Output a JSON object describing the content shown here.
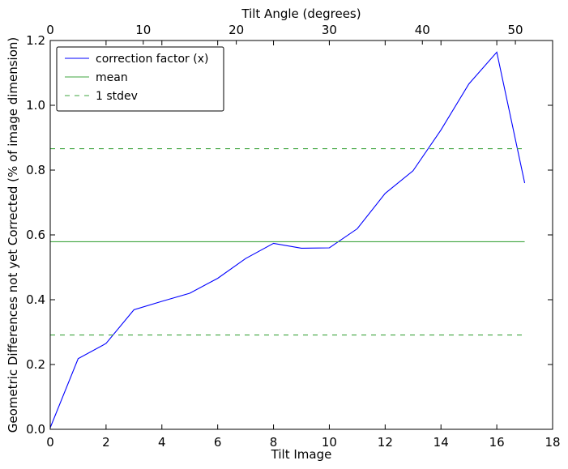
{
  "chart_data": {
    "type": "line",
    "xlabel": "Tilt Image",
    "ylabel": "Geometric Differences not yet Corrected (% of image dimension)",
    "top_xlabel": "Tilt Angle (degrees)",
    "xlim": [
      0,
      18
    ],
    "ylim": [
      0,
      1.2
    ],
    "top_xlim": [
      0,
      54
    ],
    "x_ticks": [
      "0",
      "2",
      "4",
      "6",
      "8",
      "10",
      "12",
      "14",
      "16",
      "18"
    ],
    "y_ticks": [
      "0.0",
      "0.2",
      "0.4",
      "0.6",
      "0.8",
      "1.0",
      "1.2"
    ],
    "top_x_ticks": [
      "0",
      "10",
      "20",
      "30",
      "40",
      "50"
    ],
    "grid": false,
    "legend_position": "top-left",
    "series": [
      {
        "name": "correction factor (x)",
        "color": "#0000ff",
        "style": "solid",
        "x": [
          0,
          1,
          2,
          3,
          4,
          5,
          6,
          7,
          8,
          9,
          10,
          11,
          12,
          13,
          14,
          15,
          16,
          17
        ],
        "y": [
          0.005,
          0.218,
          0.265,
          0.369,
          0.395,
          0.42,
          0.466,
          0.527,
          0.574,
          0.559,
          0.56,
          0.619,
          0.728,
          0.798,
          0.924,
          1.066,
          1.164,
          0.76
        ]
      },
      {
        "name": "mean",
        "color": "#3fa43f",
        "style": "solid",
        "x": [
          0,
          17
        ],
        "y": [
          0.579,
          0.579
        ]
      },
      {
        "name": "1 stdev",
        "color": "#3fa43f",
        "style": "dashed",
        "x": [
          0,
          17
        ],
        "y": [
          0.866,
          0.866
        ]
      },
      {
        "name": "",
        "color": "#3fa43f",
        "style": "dashed",
        "x": [
          0,
          17
        ],
        "y": [
          0.291,
          0.291
        ]
      }
    ]
  }
}
